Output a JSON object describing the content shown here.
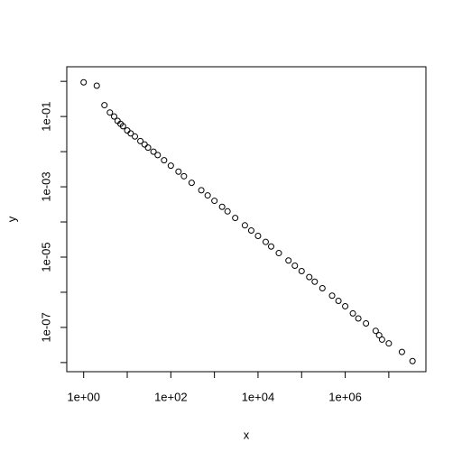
{
  "chart_data": {
    "type": "scatter",
    "xlabel": "x",
    "ylabel": "y",
    "log_x": true,
    "log_y": true,
    "color": "#000000",
    "x": [
      1,
      2,
      3,
      4,
      5,
      6,
      7,
      8,
      10,
      12,
      15,
      20,
      25,
      30,
      40,
      50,
      70,
      100,
      150,
      200,
      300,
      500,
      700,
      1000,
      1500,
      2000,
      3000,
      5000,
      7000,
      10000,
      15000,
      20000,
      30000,
      50000,
      70000,
      100000,
      150000,
      200000,
      300000,
      500000,
      700000,
      1000000,
      1500000,
      2000000,
      3000000,
      5000000,
      6000000,
      7000000,
      10000000,
      20000000,
      35000000
    ],
    "values": [
      0.94,
      0.75,
      0.21,
      0.13,
      0.1,
      0.075,
      0.062,
      0.053,
      0.04,
      0.033,
      0.027,
      0.02,
      0.016,
      0.013,
      0.01,
      0.008,
      0.0057,
      0.004,
      0.0027,
      0.002,
      0.0013,
      0.0008,
      0.00057,
      0.0004,
      0.00027,
      0.0002,
      0.00013,
      8e-05,
      5.7e-05,
      4e-05,
      2.7e-05,
      2e-05,
      1.3e-05,
      8e-06,
      5.7e-06,
      4e-06,
      2.7e-06,
      2e-06,
      1.3e-06,
      8e-07,
      5.7e-07,
      4e-07,
      2.5e-07,
      1.8e-07,
      1.3e-07,
      8e-08,
      6e-08,
      4.5e-08,
      3.5e-08,
      2e-08,
      1.1e-08
    ],
    "xlim": [
      0.41,
      71000000
    ],
    "ylim": [
      5.5e-09,
      2.6
    ],
    "xticks": [
      {
        "value": 1,
        "label": "1e+00"
      },
      {
        "value": 10,
        "label": null
      },
      {
        "value": 100,
        "label": "1e+02"
      },
      {
        "value": 1000,
        "label": null
      },
      {
        "value": 10000,
        "label": "1e+04"
      },
      {
        "value": 100000,
        "label": null
      },
      {
        "value": 1000000,
        "label": "1e+06"
      },
      {
        "value": 10000000,
        "label": null
      }
    ],
    "yticks": [
      {
        "value": 1,
        "label": null
      },
      {
        "value": 0.1,
        "label": "1e-01"
      },
      {
        "value": 0.01,
        "label": null
      },
      {
        "value": 0.001,
        "label": "1e-03"
      },
      {
        "value": 0.0001,
        "label": null
      },
      {
        "value": 1e-05,
        "label": "1e-05"
      },
      {
        "value": 1e-06,
        "label": null
      },
      {
        "value": 1e-07,
        "label": "1e-07"
      },
      {
        "value": 1e-08,
        "label": null
      }
    ]
  }
}
